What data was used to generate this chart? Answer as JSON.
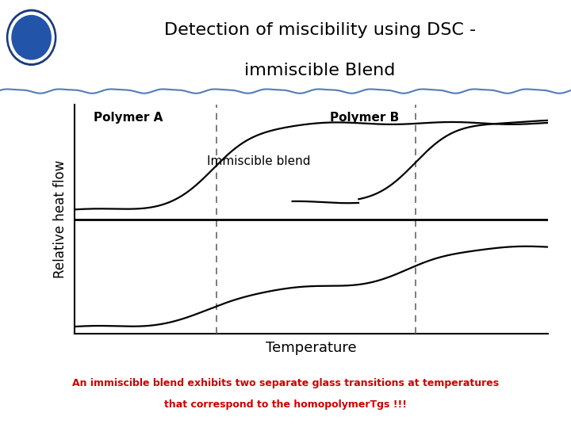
{
  "title_line1": "Detection of miscibility using DSC -",
  "title_line2": "immiscible Blend",
  "xlabel": "Temperature",
  "ylabel": "Relative heat flow",
  "label_polymer_a": "Polymer A",
  "label_polymer_b": "Polymer B",
  "label_blend": "Immiscible blend",
  "tg1": 0.3,
  "tg2": 0.72,
  "bottom_text_line1": "An immiscible blend exhibits two separate glass transitions at temperatures",
  "bottom_text_line2": "that correspond to the homopolymerTgs !!!",
  "bottom_text_color": "#cc0000",
  "background_color": "#ffffff",
  "curve_color": "#000000",
  "dashed_line_color": "#666666",
  "divider_color": "#000000",
  "title_color": "#000000",
  "decorative_color": "#3366aa"
}
